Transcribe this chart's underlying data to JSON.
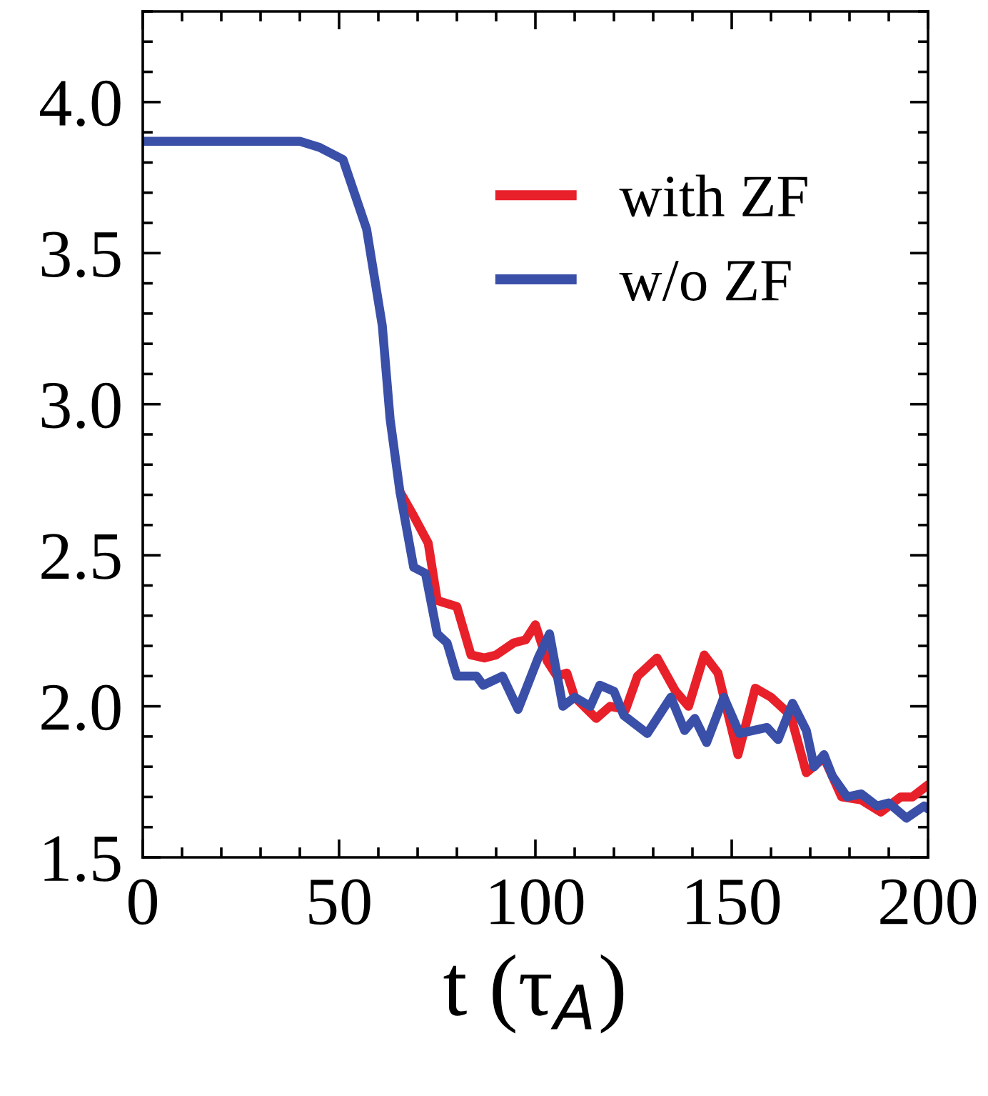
{
  "chart_data": {
    "type": "line",
    "xlabel": "t (τ$_{A}$)",
    "xlim": [
      0,
      200
    ],
    "xticks": [
      0,
      50,
      100,
      150,
      200
    ],
    "ylim": [
      1.5,
      4.3
    ],
    "yticks": [
      {
        "value": 1.5,
        "label": "1.5"
      },
      {
        "value": 2,
        "label": "2.0"
      },
      {
        "value": 2.5,
        "label": "2.5"
      },
      {
        "value": 3,
        "label": "3.0"
      },
      {
        "value": 3.5,
        "label": "3.5"
      },
      {
        "value": 4,
        "label": "4.0"
      }
    ],
    "grid": false,
    "legend": "top right",
    "line_style": "solid",
    "marker": "none",
    "series": [
      {
        "name": "with ZF",
        "color": "#e8202a",
        "x": [
          65.5,
          69,
          72.7,
          75,
          80,
          83.6,
          87,
          90,
          94.5,
          97.5,
          100,
          103,
          105.5,
          108,
          110,
          115.5,
          119,
          123,
          126,
          131,
          135.7,
          139,
          143,
          146.5,
          151.6,
          156,
          160,
          165,
          169,
          173.5,
          178,
          183,
          188,
          193,
          196,
          200
        ],
        "values": [
          2.71,
          2.63,
          2.54,
          2.35,
          2.33,
          2.17,
          2.16,
          2.17,
          2.21,
          2.22,
          2.27,
          2.15,
          2.1,
          2.11,
          2.03,
          1.96,
          2.0,
          1.99,
          2.1,
          2.16,
          2.05,
          2.0,
          2.17,
          2.11,
          1.84,
          2.06,
          2.03,
          1.97,
          1.78,
          1.83,
          1.7,
          1.69,
          1.65,
          1.7,
          1.7,
          1.74
        ]
      },
      {
        "name": "w/o ZF",
        "color": "#3a4fa8",
        "x": [
          0,
          20,
          40,
          45,
          51,
          57,
          61,
          63,
          65.5,
          69,
          72,
          75,
          77.5,
          80,
          85,
          86.7,
          91.6,
          95.6,
          100.7,
          103.6,
          107,
          110,
          114,
          116.4,
          120,
          122.5,
          128.5,
          134.5,
          138,
          140.6,
          143.6,
          148,
          152,
          159,
          161.8,
          165.5,
          169,
          171,
          173.5,
          175.6,
          179.4,
          183,
          187,
          190,
          194.5,
          199,
          200
        ],
        "values": [
          3.87,
          3.87,
          3.87,
          3.85,
          3.81,
          3.58,
          3.26,
          2.95,
          2.71,
          2.46,
          2.44,
          2.24,
          2.21,
          2.1,
          2.1,
          2.07,
          2.1,
          1.99,
          2.16,
          2.24,
          2.0,
          2.03,
          2.0,
          2.07,
          2.05,
          1.97,
          1.91,
          2.03,
          1.92,
          1.96,
          1.88,
          2.03,
          1.91,
          1.93,
          1.89,
          2.01,
          1.92,
          1.8,
          1.84,
          1.77,
          1.7,
          1.71,
          1.67,
          1.68,
          1.63,
          1.67,
          1.66
        ]
      }
    ]
  }
}
